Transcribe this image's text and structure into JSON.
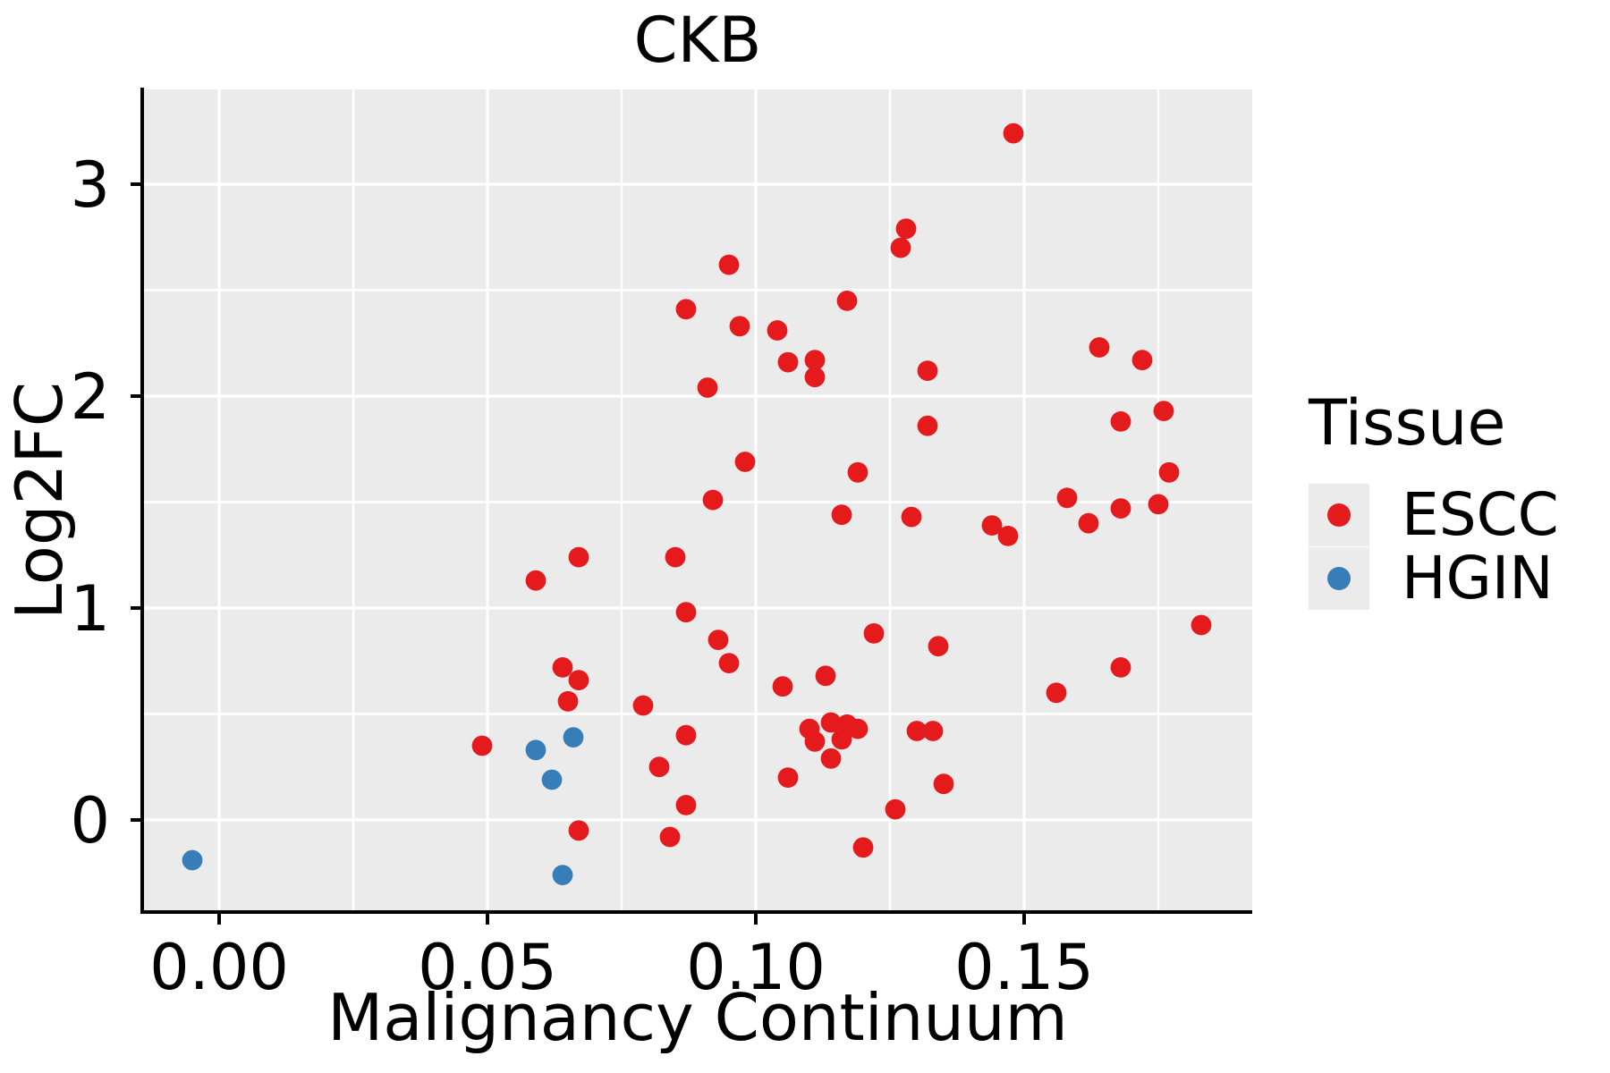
{
  "chart_data": {
    "type": "scatter",
    "title": "CKB",
    "xlabel": "Malignancy Continuum",
    "ylabel": "Log2FC",
    "xlim": [
      -0.01417,
      0.1925
    ],
    "ylim": [
      -0.4304,
      3.4473
    ],
    "grid": true,
    "panel_bg": "#EBEBEB",
    "grid_color": "#FFFFFF",
    "axis_color": "#000000",
    "x_ticks": {
      "values": [
        0.0,
        0.05,
        0.1,
        0.15
      ],
      "labels": [
        "0.00",
        "0.05",
        "0.10",
        "0.15"
      ]
    },
    "y_ticks": {
      "values": [
        0,
        1,
        2,
        3
      ],
      "labels": [
        "0",
        "1",
        "2",
        "3"
      ]
    },
    "x_minor": [
      0.025,
      0.075,
      0.125,
      0.175
    ],
    "y_minor": [
      0.5,
      1.5,
      2.5
    ],
    "point_radius_px": 11.4,
    "legend": {
      "title": "Tissue",
      "position": "right"
    },
    "series": [
      {
        "name": "ESCC",
        "color": "#E41A1C",
        "points": [
          [
            0.148,
            3.24
          ],
          [
            0.128,
            2.79
          ],
          [
            0.127,
            2.7
          ],
          [
            0.095,
            2.62
          ],
          [
            0.117,
            2.45
          ],
          [
            0.087,
            2.41
          ],
          [
            0.097,
            2.33
          ],
          [
            0.104,
            2.31
          ],
          [
            0.164,
            2.23
          ],
          [
            0.172,
            2.17
          ],
          [
            0.111,
            2.17
          ],
          [
            0.106,
            2.16
          ],
          [
            0.132,
            2.12
          ],
          [
            0.111,
            2.09
          ],
          [
            0.091,
            2.04
          ],
          [
            0.176,
            1.93
          ],
          [
            0.168,
            1.88
          ],
          [
            0.132,
            1.86
          ],
          [
            0.098,
            1.69
          ],
          [
            0.119,
            1.64
          ],
          [
            0.177,
            1.64
          ],
          [
            0.158,
            1.52
          ],
          [
            0.092,
            1.51
          ],
          [
            0.175,
            1.49
          ],
          [
            0.168,
            1.47
          ],
          [
            0.116,
            1.44
          ],
          [
            0.129,
            1.43
          ],
          [
            0.162,
            1.4
          ],
          [
            0.144,
            1.39
          ],
          [
            0.147,
            1.34
          ],
          [
            0.085,
            1.24
          ],
          [
            0.067,
            1.24
          ],
          [
            0.059,
            1.13
          ],
          [
            0.087,
            0.98
          ],
          [
            0.183,
            0.92
          ],
          [
            0.122,
            0.88
          ],
          [
            0.093,
            0.85
          ],
          [
            0.134,
            0.82
          ],
          [
            0.095,
            0.74
          ],
          [
            0.064,
            0.72
          ],
          [
            0.168,
            0.72
          ],
          [
            0.113,
            0.68
          ],
          [
            0.067,
            0.66
          ],
          [
            0.105,
            0.63
          ],
          [
            0.156,
            0.6
          ],
          [
            0.065,
            0.56
          ],
          [
            0.079,
            0.54
          ],
          [
            0.114,
            0.46
          ],
          [
            0.117,
            0.45
          ],
          [
            0.11,
            0.43
          ],
          [
            0.119,
            0.43
          ],
          [
            0.13,
            0.42
          ],
          [
            0.133,
            0.42
          ],
          [
            0.087,
            0.4
          ],
          [
            0.111,
            0.37
          ],
          [
            0.116,
            0.38
          ],
          [
            0.049,
            0.35
          ],
          [
            0.114,
            0.29
          ],
          [
            0.082,
            0.25
          ],
          [
            0.106,
            0.2
          ],
          [
            0.135,
            0.17
          ],
          [
            0.087,
            0.07
          ],
          [
            0.126,
            0.05
          ],
          [
            0.067,
            -0.05
          ],
          [
            0.084,
            -0.08
          ],
          [
            0.12,
            -0.13
          ]
        ]
      },
      {
        "name": "HGIN",
        "color": "#377EB8",
        "points": [
          [
            -0.005,
            -0.19
          ],
          [
            0.066,
            0.39
          ],
          [
            0.059,
            0.33
          ],
          [
            0.062,
            0.19
          ],
          [
            0.064,
            -0.26
          ]
        ]
      }
    ]
  }
}
